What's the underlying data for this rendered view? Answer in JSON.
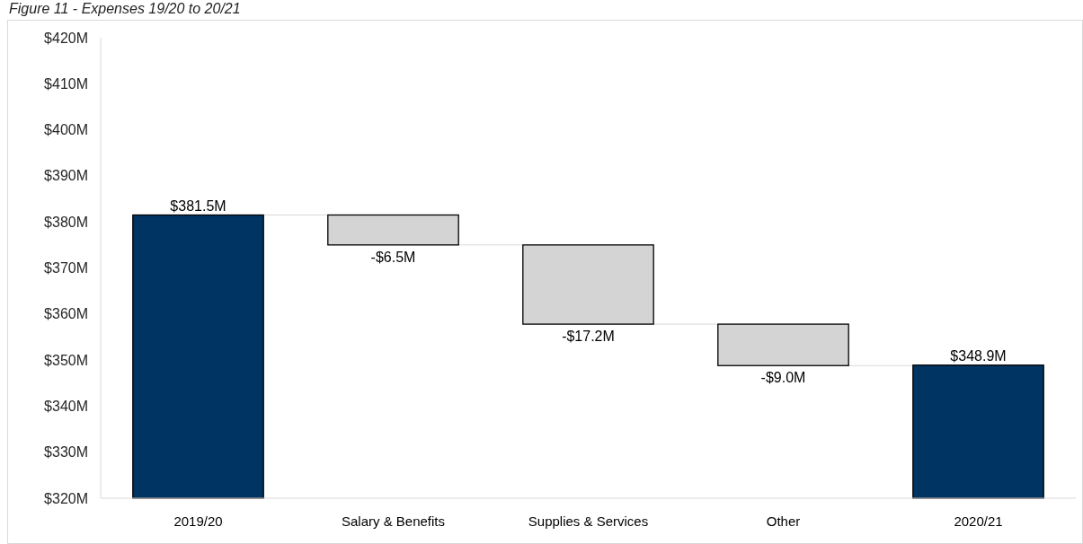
{
  "chart_data": {
    "type": "bar",
    "title": "Figure 11 - Expenses 19/20 to 20/21",
    "categories": [
      "2019/20",
      "Salary & Benefits",
      "Supplies & Services",
      "Other",
      "2020/21"
    ],
    "values": [
      381.5,
      -6.5,
      -17.2,
      -9.0,
      348.9
    ],
    "base": [
      null,
      381.5,
      375.0,
      357.8,
      null
    ],
    "colors": [
      "#003462",
      "#d4d4d4",
      "#d4d4d4",
      "#d4d4d4",
      "#003462"
    ],
    "value_labels": [
      "$381.5M",
      "-$6.5M",
      "-$17.2M",
      "-$9.0M",
      "$348.9M"
    ],
    "ylim": [
      320,
      420
    ],
    "yticks": [
      {
        "value": 320,
        "label": "$320M"
      },
      {
        "value": 330,
        "label": "$330M"
      },
      {
        "value": 340,
        "label": "$340M"
      },
      {
        "value": 350,
        "label": "$350M"
      },
      {
        "value": 360,
        "label": "$360M"
      },
      {
        "value": 370,
        "label": "$370M"
      },
      {
        "value": 380,
        "label": "$380M"
      },
      {
        "value": 390,
        "label": "$390M"
      },
      {
        "value": 400,
        "label": "$400M"
      },
      {
        "value": 410,
        "label": "$410M"
      },
      {
        "value": 420,
        "label": "$420M"
      }
    ]
  }
}
